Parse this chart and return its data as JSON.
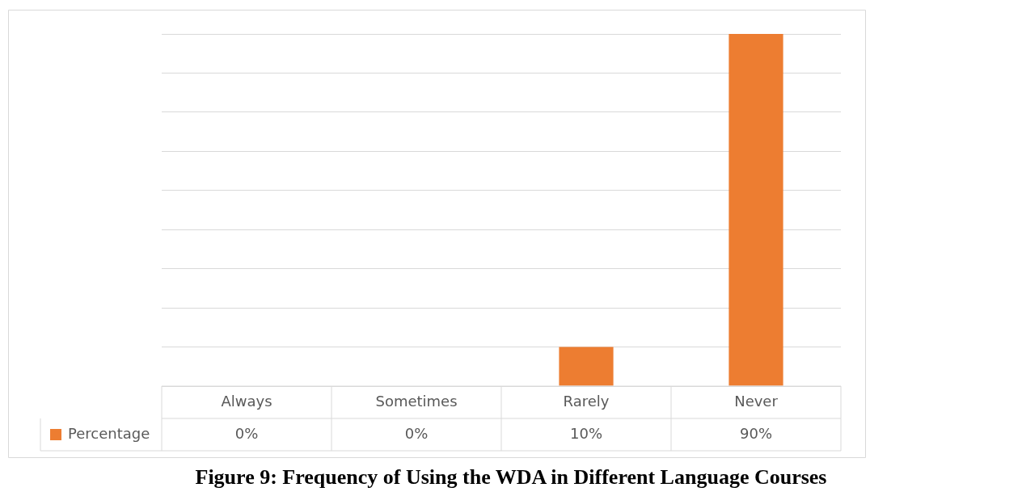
{
  "chart_data": {
    "type": "bar",
    "title": "Figure 9: Frequency of Using the WDA  in Different Language Courses",
    "categories": [
      "Always",
      "Sometimes",
      "Rarely",
      "Never"
    ],
    "series": [
      {
        "name": "Percentage",
        "color": "#ed7d31",
        "values": [
          0,
          0,
          10,
          90
        ],
        "value_labels": [
          "0%",
          "0%",
          "10%",
          "90%"
        ]
      }
    ],
    "grid": "y",
    "legend": "bottom"
  }
}
